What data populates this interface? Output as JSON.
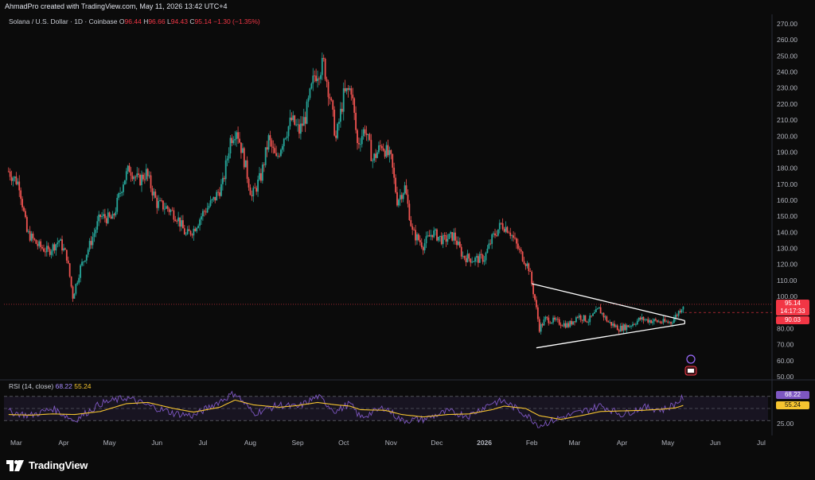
{
  "attribution": "AhmadPro created with TradingView.com, May 11, 2026 13:42 UTC+4",
  "legend": {
    "symbol": "Solana / U.S. Dollar · 1D · Coinbase",
    "open_label": "O",
    "open": "96.44",
    "high_label": "H",
    "high": "96.66",
    "low_label": "L",
    "low": "94.43",
    "close_label": "C",
    "close": "95.14",
    "change": "−1.30 (−1.35%)"
  },
  "price_axis": {
    "ticks": [
      "270.00",
      "260.00",
      "250.00",
      "240.00",
      "230.00",
      "220.00",
      "210.00",
      "200.00",
      "190.00",
      "180.00",
      "170.00",
      "160.00",
      "150.00",
      "140.00",
      "130.00",
      "120.00",
      "110.00",
      "100.00",
      "80.00",
      "70.00",
      "60.00",
      "50.00"
    ],
    "tick_values": [
      270,
      260,
      250,
      240,
      230,
      220,
      210,
      200,
      190,
      180,
      170,
      160,
      150,
      140,
      130,
      120,
      110,
      100,
      80,
      70,
      60,
      50
    ],
    "last_price": "95.14",
    "countdown": "14:17:33",
    "level_tag": "90.03"
  },
  "rsi": {
    "label": "RSI (14, close)",
    "value": "68.22",
    "ma_value": "55.24",
    "ticks": [
      "75.00",
      "25.00"
    ],
    "tick_values": [
      75,
      25
    ]
  },
  "time_axis": {
    "months": [
      "Mar",
      "Apr",
      "May",
      "Jun",
      "Jul",
      "Aug",
      "Sep",
      "Oct",
      "Nov",
      "Dec",
      "2026",
      "Feb",
      "Mar",
      "Apr",
      "May",
      "Jun",
      "Jul"
    ]
  },
  "footer": {
    "brand": "TradingView"
  },
  "colors": {
    "background": "#0b0b0b",
    "up": "#26a69a",
    "down": "#ef5350",
    "rsi_line": "#7e57c2",
    "rsi_ma": "#f5c430",
    "price_tag": "#f23645",
    "rsi_tag": "#7e57c2"
  },
  "chart_data": {
    "type": "candlestick",
    "y_range": [
      50,
      270
    ],
    "close_path": [
      {
        "date": "2025-02-24",
        "close": 178
      },
      {
        "date": "2025-03-03",
        "close": 170
      },
      {
        "date": "2025-03-08",
        "close": 140
      },
      {
        "date": "2025-03-15",
        "close": 132
      },
      {
        "date": "2025-03-22",
        "close": 128
      },
      {
        "date": "2025-03-29",
        "close": 135
      },
      {
        "date": "2025-04-03",
        "close": 125
      },
      {
        "date": "2025-04-07",
        "close": 100
      },
      {
        "date": "2025-04-12",
        "close": 118
      },
      {
        "date": "2025-04-18",
        "close": 132
      },
      {
        "date": "2025-04-25",
        "close": 150
      },
      {
        "date": "2025-05-03",
        "close": 148
      },
      {
        "date": "2025-05-10",
        "close": 172
      },
      {
        "date": "2025-05-14",
        "close": 180
      },
      {
        "date": "2025-05-20",
        "close": 172
      },
      {
        "date": "2025-05-25",
        "close": 177
      },
      {
        "date": "2025-06-01",
        "close": 158
      },
      {
        "date": "2025-06-08",
        "close": 155
      },
      {
        "date": "2025-06-14",
        "close": 150
      },
      {
        "date": "2025-06-20",
        "close": 138
      },
      {
        "date": "2025-06-25",
        "close": 142
      },
      {
        "date": "2025-07-01",
        "close": 152
      },
      {
        "date": "2025-07-08",
        "close": 160
      },
      {
        "date": "2025-07-14",
        "close": 170
      },
      {
        "date": "2025-07-19",
        "close": 198
      },
      {
        "date": "2025-07-23",
        "close": 205
      },
      {
        "date": "2025-07-28",
        "close": 185
      },
      {
        "date": "2025-08-02",
        "close": 162
      },
      {
        "date": "2025-08-08",
        "close": 175
      },
      {
        "date": "2025-08-13",
        "close": 198
      },
      {
        "date": "2025-08-18",
        "close": 185
      },
      {
        "date": "2025-08-23",
        "close": 200
      },
      {
        "date": "2025-08-28",
        "close": 210
      },
      {
        "date": "2025-09-02",
        "close": 203
      },
      {
        "date": "2025-09-06",
        "close": 212
      },
      {
        "date": "2025-09-12",
        "close": 238
      },
      {
        "date": "2025-09-18",
        "close": 245
      },
      {
        "date": "2025-09-22",
        "close": 225
      },
      {
        "date": "2025-09-26",
        "close": 198
      },
      {
        "date": "2025-10-01",
        "close": 225
      },
      {
        "date": "2025-10-06",
        "close": 230
      },
      {
        "date": "2025-10-10",
        "close": 195
      },
      {
        "date": "2025-10-15",
        "close": 205
      },
      {
        "date": "2025-10-20",
        "close": 185
      },
      {
        "date": "2025-10-26",
        "close": 195
      },
      {
        "date": "2025-11-01",
        "close": 185
      },
      {
        "date": "2025-11-05",
        "close": 160
      },
      {
        "date": "2025-11-10",
        "close": 168
      },
      {
        "date": "2025-11-15",
        "close": 140
      },
      {
        "date": "2025-11-22",
        "close": 132
      },
      {
        "date": "2025-11-28",
        "close": 140
      },
      {
        "date": "2025-12-05",
        "close": 135
      },
      {
        "date": "2025-12-12",
        "close": 138
      },
      {
        "date": "2025-12-18",
        "close": 125
      },
      {
        "date": "2025-12-25",
        "close": 123
      },
      {
        "date": "2026-01-01",
        "close": 124
      },
      {
        "date": "2026-01-06",
        "close": 136
      },
      {
        "date": "2026-01-12",
        "close": 145
      },
      {
        "date": "2026-01-17",
        "close": 142
      },
      {
        "date": "2026-01-24",
        "close": 128
      },
      {
        "date": "2026-01-30",
        "close": 118
      },
      {
        "date": "2026-02-03",
        "close": 98
      },
      {
        "date": "2026-02-06",
        "close": 80
      },
      {
        "date": "2026-02-10",
        "close": 86
      },
      {
        "date": "2026-02-18",
        "close": 84
      },
      {
        "date": "2026-02-25",
        "close": 82
      },
      {
        "date": "2026-03-03",
        "close": 88
      },
      {
        "date": "2026-03-10",
        "close": 85
      },
      {
        "date": "2026-03-17",
        "close": 92
      },
      {
        "date": "2026-03-23",
        "close": 84
      },
      {
        "date": "2026-03-30",
        "close": 80
      },
      {
        "date": "2026-04-06",
        "close": 82
      },
      {
        "date": "2026-04-13",
        "close": 86
      },
      {
        "date": "2026-04-20",
        "close": 85
      },
      {
        "date": "2026-04-27",
        "close": 84
      },
      {
        "date": "2026-05-03",
        "close": 84
      },
      {
        "date": "2026-05-07",
        "close": 89
      },
      {
        "date": "2026-05-11",
        "close": 95
      }
    ],
    "triangle": {
      "upper": [
        {
          "date": "2026-02-01",
          "price": 108
        },
        {
          "date": "2026-05-12",
          "price": 85
        }
      ],
      "lower": [
        {
          "date": "2026-02-04",
          "price": 68
        },
        {
          "date": "2026-05-12",
          "price": 83
        }
      ]
    },
    "rsi_series": [
      {
        "date": "2025-02-24",
        "rsi": 45,
        "ma": 40
      },
      {
        "date": "2025-03-10",
        "rsi": 38,
        "ma": 39
      },
      {
        "date": "2025-03-25",
        "rsi": 50,
        "ma": 41
      },
      {
        "date": "2025-04-08",
        "rsi": 30,
        "ma": 40
      },
      {
        "date": "2025-04-25",
        "rsi": 58,
        "ma": 45
      },
      {
        "date": "2025-05-12",
        "rsi": 68,
        "ma": 58
      },
      {
        "date": "2025-05-26",
        "rsi": 55,
        "ma": 60
      },
      {
        "date": "2025-06-12",
        "rsi": 42,
        "ma": 50
      },
      {
        "date": "2025-06-25",
        "rsi": 38,
        "ma": 44
      },
      {
        "date": "2025-07-12",
        "rsi": 62,
        "ma": 52
      },
      {
        "date": "2025-07-22",
        "rsi": 76,
        "ma": 64
      },
      {
        "date": "2025-08-03",
        "rsi": 42,
        "ma": 56
      },
      {
        "date": "2025-08-20",
        "rsi": 56,
        "ma": 52
      },
      {
        "date": "2025-09-01",
        "rsi": 52,
        "ma": 55
      },
      {
        "date": "2025-09-14",
        "rsi": 70,
        "ma": 60
      },
      {
        "date": "2025-09-26",
        "rsi": 45,
        "ma": 56
      },
      {
        "date": "2025-10-05",
        "rsi": 58,
        "ma": 54
      },
      {
        "date": "2025-10-12",
        "rsi": 35,
        "ma": 48
      },
      {
        "date": "2025-10-28",
        "rsi": 52,
        "ma": 47
      },
      {
        "date": "2025-11-08",
        "rsi": 30,
        "ma": 40
      },
      {
        "date": "2025-11-22",
        "rsi": 32,
        "ma": 36
      },
      {
        "date": "2025-12-08",
        "rsi": 45,
        "ma": 40
      },
      {
        "date": "2025-12-22",
        "rsi": 38,
        "ma": 41
      },
      {
        "date": "2026-01-06",
        "rsi": 60,
        "ma": 48
      },
      {
        "date": "2026-01-14",
        "rsi": 62,
        "ma": 54
      },
      {
        "date": "2026-01-28",
        "rsi": 40,
        "ma": 50
      },
      {
        "date": "2026-02-06",
        "rsi": 22,
        "ma": 38
      },
      {
        "date": "2026-02-20",
        "rsi": 35,
        "ma": 32
      },
      {
        "date": "2026-03-05",
        "rsi": 44,
        "ma": 38
      },
      {
        "date": "2026-03-18",
        "rsi": 55,
        "ma": 45
      },
      {
        "date": "2026-04-01",
        "rsi": 40,
        "ma": 46
      },
      {
        "date": "2026-04-15",
        "rsi": 52,
        "ma": 47
      },
      {
        "date": "2026-04-28",
        "rsi": 48,
        "ma": 49
      },
      {
        "date": "2026-05-06",
        "rsi": 58,
        "ma": 51
      },
      {
        "date": "2026-05-11",
        "rsi": 68,
        "ma": 55
      }
    ]
  }
}
